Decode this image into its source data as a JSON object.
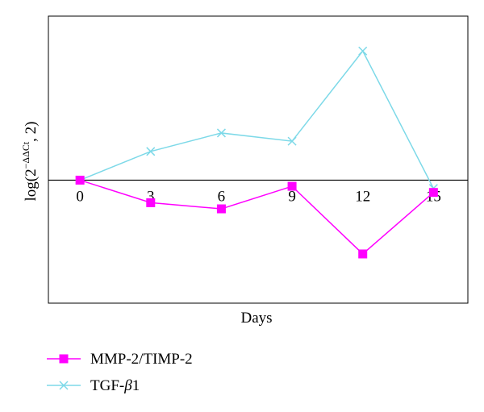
{
  "chart_data": {
    "type": "line",
    "title": "",
    "xlabel": "Days",
    "ylabel_parts": {
      "before": "log(2",
      "superscript": "−ΔΔCt",
      "after": ", 2)"
    },
    "x": [
      0,
      3,
      6,
      9,
      12,
      15
    ],
    "x_tick_labels": [
      "0",
      "3",
      "6",
      "9",
      "12",
      "15"
    ],
    "x_range": [
      -1.34,
      16.46
    ],
    "y_range": [
      -0.6,
      0.8
    ],
    "grid": false,
    "legend_position": "bottom-left",
    "series": [
      {
        "name": "MMP-2/TIMP-2",
        "color": "#ff00ff",
        "marker": "square",
        "values": [
          0,
          -0.11,
          -0.14,
          -0.03,
          -0.36,
          -0.06
        ]
      },
      {
        "name": "TGF-β1",
        "name_parts": {
          "before": "TGF-",
          "italic": "β",
          "after": "1"
        },
        "color": "#7dd9e8",
        "marker": "x",
        "values": [
          0,
          0.14,
          0.23,
          0.19,
          0.63,
          -0.04
        ]
      }
    ]
  }
}
